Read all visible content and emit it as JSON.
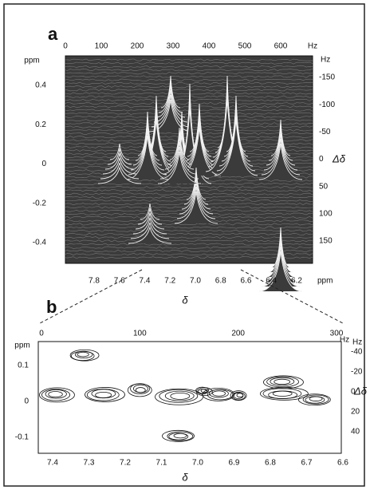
{
  "panels": [
    {
      "label": "a",
      "top_axis": {
        "ticks": [
          "0",
          "100",
          "200",
          "300",
          "400",
          "500",
          "600"
        ],
        "unit": "Hz"
      },
      "left_axis": {
        "unit": "ppm",
        "ticks": [
          "0.4",
          "0.2",
          "0",
          "-0.2",
          "-0.4"
        ]
      },
      "right_axis": {
        "unit": "Hz",
        "label": "Δδ",
        "ticks": [
          "-150",
          "-100",
          "-50",
          "0",
          "50",
          "100",
          "150"
        ]
      },
      "bottom_axis": {
        "ticks": [
          "7.8",
          "7.6",
          "7.4",
          "7.2",
          "7.0",
          "6.8",
          "6.6",
          "6.4",
          "6.2"
        ],
        "unit": "ppm",
        "label": "δ"
      }
    },
    {
      "label": "b",
      "top_axis": {
        "ticks": [
          "0",
          "100",
          "200",
          "300"
        ],
        "unit": "Hz"
      },
      "left_axis": {
        "unit": "ppm",
        "ticks": [
          "0.1",
          "0",
          "-0.1"
        ]
      },
      "right_axis": {
        "unit": "Hz",
        "label": "Δδ",
        "ticks": [
          "-40",
          "-20",
          "0",
          "20",
          "40"
        ]
      },
      "bottom_axis": {
        "ticks": [
          "7.4",
          "7.3",
          "7.2",
          "7.1",
          "7.0",
          "6.9",
          "6.8",
          "6.7",
          "6.6"
        ],
        "label": "δ"
      }
    }
  ]
}
